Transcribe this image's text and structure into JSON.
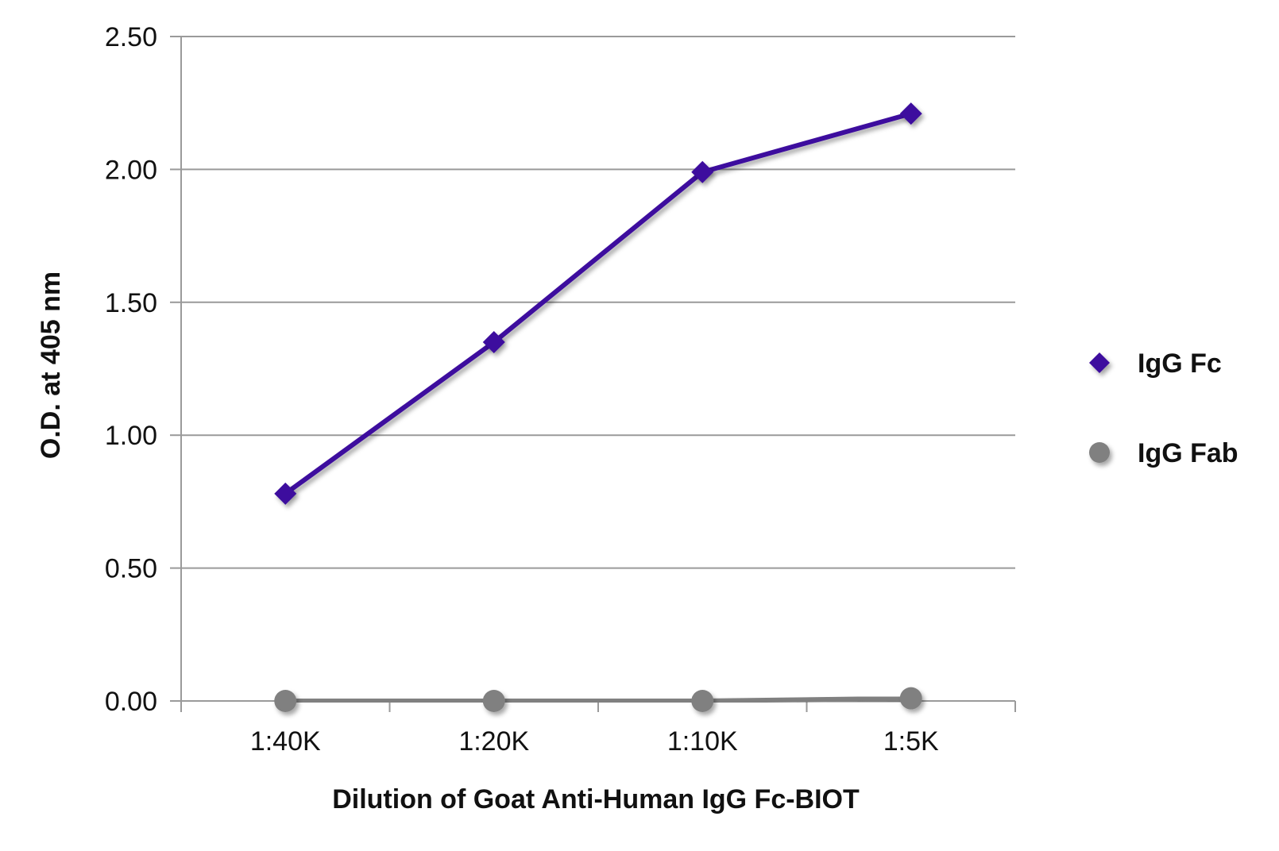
{
  "chart_data": {
    "type": "line",
    "title": "",
    "xlabel": "Dilution of Goat Anti-Human IgG Fc-BIOT",
    "ylabel": "O.D. at 405 nm",
    "categories": [
      "1:40K",
      "1:20K",
      "1:10K",
      "1:5K"
    ],
    "ylim": [
      0,
      2.5
    ],
    "yticks": [
      "0.00",
      "0.50",
      "1.00",
      "1.50",
      "2.00",
      "2.50"
    ],
    "grid": "horizontal",
    "legend_position": "right",
    "series": [
      {
        "name": "IgG Fc",
        "values": [
          0.78,
          1.35,
          1.99,
          2.21
        ],
        "color": "#3d0a9e",
        "marker": "diamond"
      },
      {
        "name": "IgG Fab",
        "values": [
          0.0,
          0.0,
          0.0,
          0.01
        ],
        "color": "#808080",
        "marker": "circle"
      }
    ]
  }
}
